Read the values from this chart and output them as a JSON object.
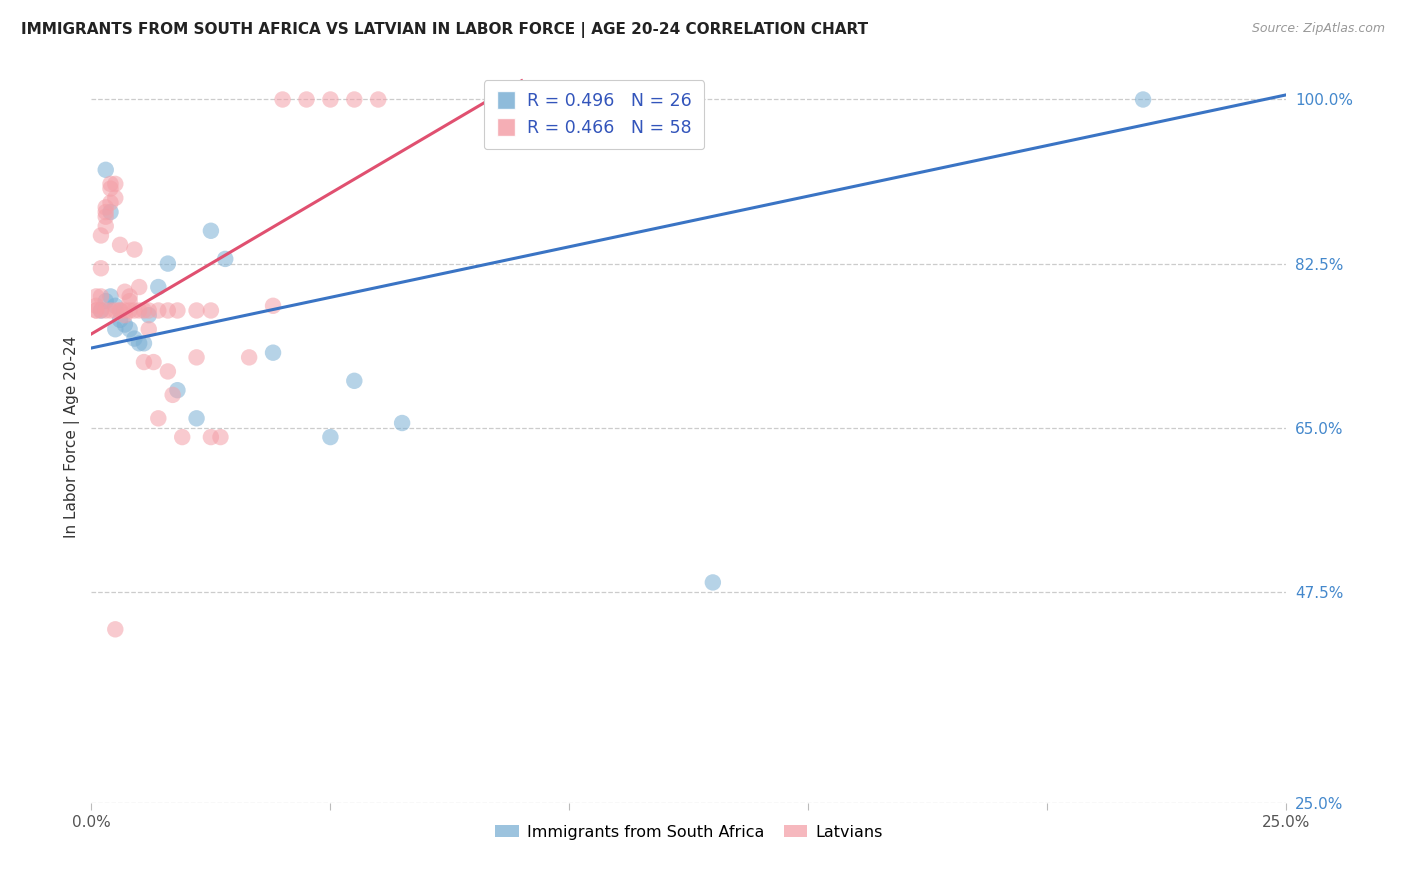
{
  "title": "IMMIGRANTS FROM SOUTH AFRICA VS LATVIAN IN LABOR FORCE | AGE 20-24 CORRELATION CHART",
  "source": "Source: ZipAtlas.com",
  "ylabel": "In Labor Force | Age 20-24",
  "ytick_labels": [
    "100.0%",
    "82.5%",
    "65.0%",
    "47.5%",
    "25.0%"
  ],
  "ytick_values": [
    1.0,
    0.825,
    0.65,
    0.475,
    0.25
  ],
  "xmin": 0.0,
  "xmax": 0.25,
  "ymin": 0.25,
  "ymax": 1.03,
  "blue_R": 0.496,
  "blue_N": 26,
  "pink_R": 0.466,
  "pink_N": 58,
  "legend_label_blue": "Immigrants from South Africa",
  "legend_label_pink": "Latvians",
  "blue_color": "#7BAFD4",
  "pink_color": "#F4A0A8",
  "blue_line_color": "#3A74C4",
  "pink_line_color": "#E05070",
  "blue_scatter_x": [
    0.002,
    0.003,
    0.004,
    0.005,
    0.006,
    0.007,
    0.008,
    0.009,
    0.01,
    0.011,
    0.012,
    0.014,
    0.016,
    0.018,
    0.022,
    0.025,
    0.028,
    0.038,
    0.05,
    0.055,
    0.065,
    0.13,
    0.22,
    0.003,
    0.004,
    0.005
  ],
  "blue_scatter_y": [
    0.775,
    0.785,
    0.79,
    0.78,
    0.765,
    0.76,
    0.755,
    0.745,
    0.74,
    0.74,
    0.77,
    0.8,
    0.825,
    0.69,
    0.66,
    0.86,
    0.83,
    0.73,
    0.64,
    0.7,
    0.655,
    0.485,
    1.0,
    0.925,
    0.88,
    0.755
  ],
  "pink_scatter_x": [
    0.001,
    0.001,
    0.001,
    0.002,
    0.002,
    0.002,
    0.003,
    0.003,
    0.003,
    0.003,
    0.004,
    0.004,
    0.004,
    0.005,
    0.005,
    0.006,
    0.006,
    0.007,
    0.007,
    0.008,
    0.008,
    0.009,
    0.01,
    0.011,
    0.012,
    0.013,
    0.014,
    0.016,
    0.017,
    0.019,
    0.022,
    0.025,
    0.027,
    0.033,
    0.038,
    0.04,
    0.045,
    0.05,
    0.055,
    0.06,
    0.001,
    0.002,
    0.003,
    0.004,
    0.005,
    0.006,
    0.007,
    0.008,
    0.009,
    0.01,
    0.011,
    0.012,
    0.014,
    0.016,
    0.018,
    0.022,
    0.025,
    0.005
  ],
  "pink_scatter_y": [
    0.775,
    0.78,
    0.79,
    0.79,
    0.82,
    0.855,
    0.865,
    0.875,
    0.88,
    0.885,
    0.89,
    0.905,
    0.91,
    0.895,
    0.91,
    0.775,
    0.845,
    0.77,
    0.795,
    0.785,
    0.79,
    0.84,
    0.8,
    0.72,
    0.755,
    0.72,
    0.66,
    0.71,
    0.685,
    0.64,
    0.725,
    0.64,
    0.64,
    0.725,
    0.78,
    1.0,
    1.0,
    1.0,
    1.0,
    1.0,
    0.775,
    0.775,
    0.775,
    0.775,
    0.775,
    0.775,
    0.775,
    0.775,
    0.775,
    0.775,
    0.775,
    0.775,
    0.775,
    0.775,
    0.775,
    0.775,
    0.775,
    0.435
  ],
  "blue_trendline_x": [
    0.0,
    0.25
  ],
  "blue_trendline_y": [
    0.735,
    1.005
  ],
  "pink_trendline_x": [
    0.0,
    0.09
  ],
  "pink_trendline_y": [
    0.75,
    1.02
  ]
}
